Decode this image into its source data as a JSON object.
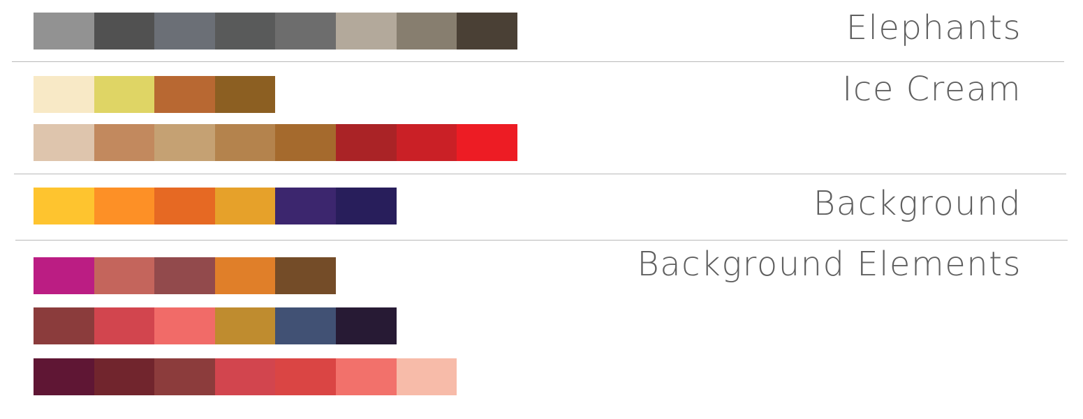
{
  "sections": [
    {
      "title": "Elephants",
      "rows": [
        [
          "#929292",
          "#515151",
          "#6b6f76",
          "#595a5a",
          "#6d6d6d",
          "#b3a99b",
          "#877e6f",
          "#4a4035"
        ]
      ]
    },
    {
      "title": "Ice Cream",
      "rows": [
        [
          "#f8e9c6",
          "#dfd565",
          "#b86832",
          "#8c5f22"
        ],
        [
          "#dec5ad",
          "#c2895e",
          "#c5a173",
          "#b4834d",
          "#a56a2d",
          "#aa2326",
          "#ca2026",
          "#ed1c24"
        ]
      ]
    },
    {
      "title": "Background",
      "rows": [
        [
          "#fec42f",
          "#fd9026",
          "#e66923",
          "#e6a12a",
          "#3c266e",
          "#281e5b"
        ]
      ]
    },
    {
      "title": "Background Elements",
      "rows": [
        [
          "#bb1d83",
          "#c4655c",
          "#924a4c",
          "#e07f29",
          "#744c28"
        ],
        [
          "#8b3c3c",
          "#d2454e",
          "#f16b68",
          "#bf8c2f",
          "#415174",
          "#271a34"
        ],
        [
          "#5f1634",
          "#71252d",
          "#8c3c3c",
          "#d2454e",
          "#da4544",
          "#f2716b",
          "#f7bba9"
        ]
      ]
    }
  ]
}
